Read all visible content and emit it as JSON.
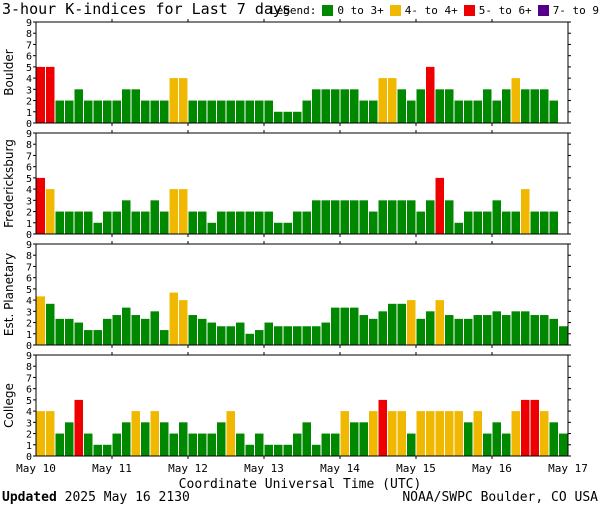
{
  "title": "3-hour K-indices for Last 7 days",
  "legend": {
    "label": "Legend:",
    "items": [
      {
        "label": "0 to 3+",
        "color": "#008800"
      },
      {
        "label": "4- to 4+",
        "color": "#f0b800"
      },
      {
        "label": "5- to 6+",
        "color": "#ee0000"
      },
      {
        "label": "7- to 9",
        "color": "#550088"
      }
    ]
  },
  "footer": {
    "updated_label": "Updated",
    "updated_value": "2025 May 16 2130",
    "credit": "NOAA/SWPC Boulder, CO USA"
  },
  "chart_data": {
    "type": "bar",
    "title": "3-hour K-indices for Last 7 days",
    "xlabel": "Coordinate Universal Time (UTC)",
    "x_ticks": [
      "May 10",
      "May 11",
      "May 12",
      "May 13",
      "May 14",
      "May 15",
      "May 16",
      "May 17"
    ],
    "y_ticks": [
      "0",
      "1",
      "2",
      "3",
      "4",
      "5",
      "6",
      "7",
      "8",
      "9"
    ],
    "ylim": [
      0,
      9
    ],
    "grid": false,
    "panels": [
      {
        "name": "Boulder",
        "values": [
          5,
          5,
          2,
          2,
          3,
          2,
          2,
          2,
          2,
          3,
          3,
          2,
          2,
          2,
          4,
          4,
          2,
          2,
          2,
          2,
          2,
          2,
          2,
          2,
          2,
          1,
          1,
          1,
          2,
          3,
          3,
          3,
          3,
          3,
          2,
          2,
          4,
          4,
          3,
          2,
          3,
          5,
          3,
          3,
          2,
          2,
          2,
          3,
          2,
          3,
          4,
          3,
          3,
          3,
          2,
          0
        ]
      },
      {
        "name": "Fredericksburg",
        "values": [
          5,
          4,
          2,
          2,
          2,
          2,
          1,
          2,
          2,
          3,
          2,
          2,
          3,
          2,
          4,
          4,
          2,
          2,
          1,
          2,
          2,
          2,
          2,
          2,
          2,
          1,
          1,
          2,
          2,
          3,
          3,
          3,
          3,
          3,
          3,
          2,
          3,
          3,
          3,
          3,
          2,
          3,
          5,
          3,
          1,
          2,
          2,
          2,
          3,
          2,
          2,
          4,
          2,
          2,
          2,
          0
        ]
      },
      {
        "name": "Est. Planetary",
        "values": [
          4.33,
          3.67,
          2.33,
          2.33,
          2.0,
          1.33,
          1.33,
          2.33,
          2.67,
          3.33,
          2.67,
          2.33,
          3.0,
          1.33,
          4.67,
          4.0,
          2.67,
          2.33,
          2.0,
          1.67,
          1.67,
          2.0,
          1.0,
          1.33,
          2.0,
          1.67,
          1.67,
          1.67,
          1.67,
          1.67,
          2.0,
          3.33,
          3.33,
          3.33,
          2.67,
          2.33,
          3.0,
          3.67,
          3.67,
          4.0,
          2.33,
          3.0,
          4.0,
          2.67,
          2.33,
          2.33,
          2.67,
          2.67,
          3.0,
          2.67,
          3.0,
          3.0,
          2.67,
          2.67,
          2.33,
          1.67
        ]
      },
      {
        "name": "College",
        "values": [
          4,
          4,
          2,
          3,
          5,
          2,
          1,
          1,
          2,
          3,
          4,
          3,
          4,
          3,
          2,
          3,
          2,
          2,
          2,
          3,
          4,
          2,
          1,
          2,
          1,
          1,
          1,
          2,
          3,
          1,
          2,
          2,
          4,
          3,
          3,
          4,
          5,
          4,
          4,
          2,
          4,
          4,
          4,
          4,
          4,
          3,
          4,
          2,
          3,
          2,
          4,
          5,
          5,
          4,
          3,
          2
        ]
      }
    ]
  }
}
